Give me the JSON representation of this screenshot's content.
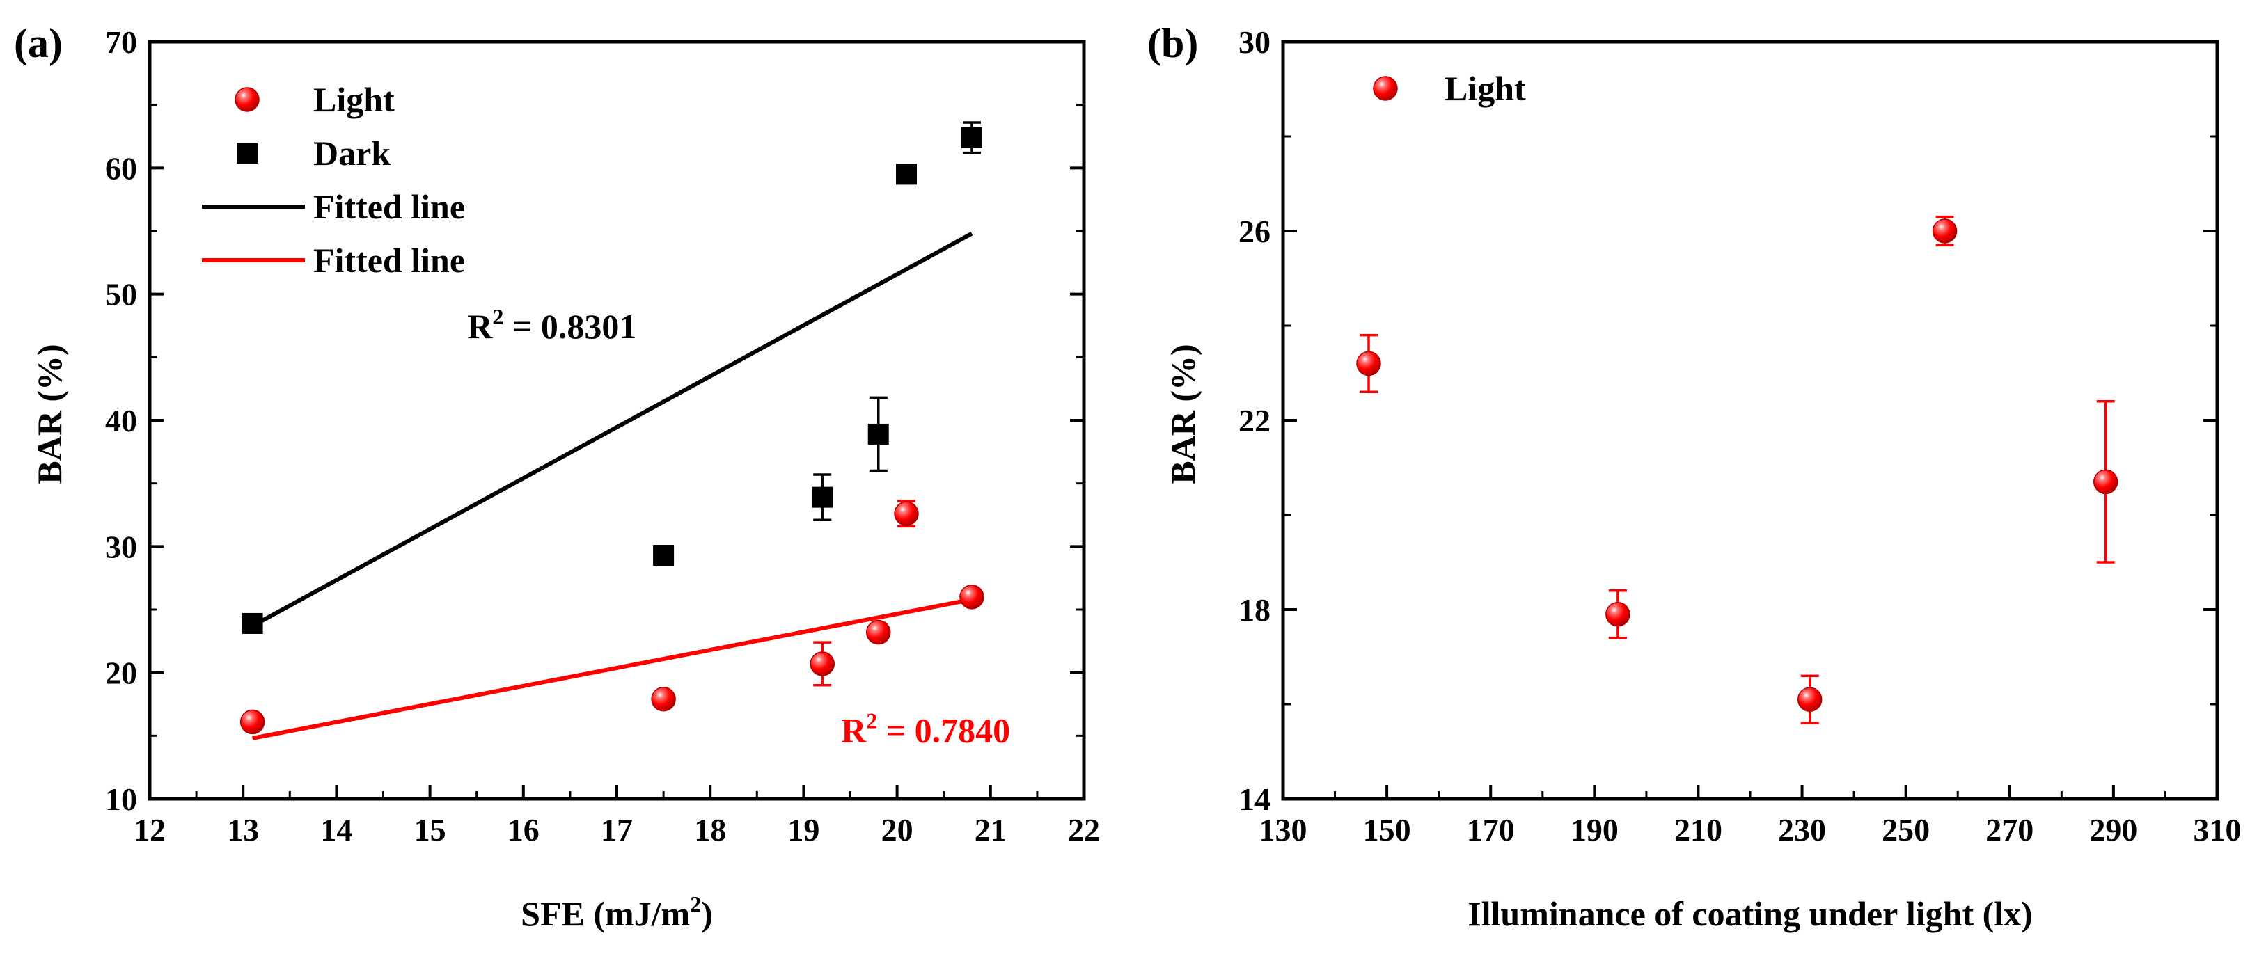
{
  "colors": {
    "light": "#ff0000",
    "dark": "#000000",
    "axis": "#000000"
  },
  "chart_data": [
    {
      "type": "scatter",
      "panel_label": "(a)",
      "xlabel": "SFE (mJ/m",
      "xlabel_sup": "2",
      "xlabel_end": ")",
      "ylabel": "BAR (%)",
      "xlim": [
        12,
        22
      ],
      "ylim": [
        10,
        70
      ],
      "xticks": [
        "12",
        "13",
        "14",
        "15",
        "16",
        "17",
        "18",
        "19",
        "20",
        "21",
        "22"
      ],
      "yticks": [
        "10",
        "20",
        "30",
        "40",
        "50",
        "60",
        "70"
      ],
      "series": [
        {
          "name": "Light",
          "marker": "circle",
          "color": "#ff0000",
          "points": [
            {
              "x": 13.1,
              "y": 16.1,
              "err": 0.6
            },
            {
              "x": 17.5,
              "y": 17.9,
              "err": 0.5
            },
            {
              "x": 19.2,
              "y": 20.7,
              "err": 1.7
            },
            {
              "x": 19.8,
              "y": 23.2,
              "err": 0.5
            },
            {
              "x": 20.1,
              "y": 32.6,
              "err": 1.0
            },
            {
              "x": 20.8,
              "y": 26.0,
              "err": 0.4
            }
          ]
        },
        {
          "name": "Dark",
          "marker": "square",
          "color": "#000000",
          "points": [
            {
              "x": 13.1,
              "y": 23.9,
              "err": 0.5
            },
            {
              "x": 17.5,
              "y": 29.3,
              "err": 0.5
            },
            {
              "x": 19.2,
              "y": 33.9,
              "err": 1.8
            },
            {
              "x": 19.8,
              "y": 38.9,
              "err": 2.9
            },
            {
              "x": 20.1,
              "y": 59.5,
              "err": 0.5
            },
            {
              "x": 20.8,
              "y": 62.4,
              "err": 1.2
            }
          ]
        }
      ],
      "fits": [
        {
          "name": "Fitted line",
          "color": "#000000",
          "x": [
            13.1,
            20.8
          ],
          "y": [
            23.7,
            54.8
          ]
        },
        {
          "name": "Fitted line",
          "color": "#ff0000",
          "x": [
            13.1,
            20.8
          ],
          "y": [
            14.8,
            25.8
          ]
        }
      ],
      "legend": [
        {
          "label": "Light",
          "kind": "circle",
          "color": "#ff0000"
        },
        {
          "label": "Dark",
          "kind": "square",
          "color": "#000000"
        },
        {
          "label": "Fitted line",
          "kind": "line",
          "color": "#000000"
        },
        {
          "label": "Fitted line",
          "kind": "line",
          "color": "#ff0000"
        }
      ],
      "annotations": [
        {
          "text": "R",
          "sup": "2",
          "rest": " = 0.8301",
          "color": "#000000",
          "at": [
            15.4,
            46.5
          ]
        },
        {
          "text": "R",
          "sup": "2",
          "rest": " = 0.7840",
          "color": "#ff0000",
          "at": [
            19.4,
            14.5
          ]
        }
      ]
    },
    {
      "type": "scatter",
      "panel_label": "(b)",
      "xlabel": "Illuminance of coating under light (lx)",
      "ylabel": "BAR (%)",
      "xlim": [
        130,
        310
      ],
      "ylim": [
        14,
        30
      ],
      "xticks": [
        "130",
        "150",
        "170",
        "190",
        "210",
        "230",
        "250",
        "270",
        "290",
        "310"
      ],
      "yticks": [
        "14",
        "18",
        "22",
        "26",
        "30"
      ],
      "series": [
        {
          "name": "Light",
          "marker": "circle",
          "color": "#ff0000",
          "points": [
            {
              "x": 146.5,
              "y": 23.2,
              "err": 0.6
            },
            {
              "x": 194.5,
              "y": 17.9,
              "err": 0.5
            },
            {
              "x": 231.5,
              "y": 16.1,
              "err": 0.5
            },
            {
              "x": 257.5,
              "y": 26.0,
              "err": 0.3
            },
            {
              "x": 288.5,
              "y": 20.7,
              "err": 1.7
            }
          ]
        }
      ],
      "legend": [
        {
          "label": "Light",
          "kind": "circle",
          "color": "#ff0000"
        }
      ]
    }
  ]
}
